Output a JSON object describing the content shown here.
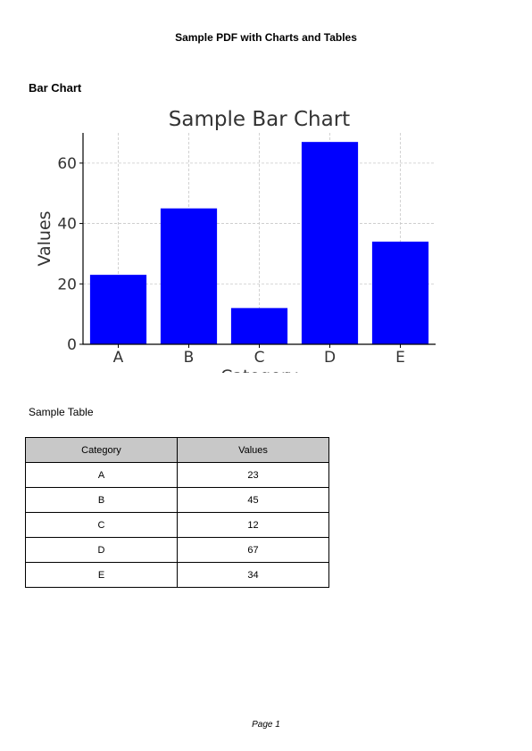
{
  "document": {
    "title": "Sample PDF with Charts and Tables",
    "section_heading": "Bar Chart",
    "table_caption": "Sample Table",
    "footer": "Page 1"
  },
  "chart_data": {
    "type": "bar",
    "title": "Sample Bar Chart",
    "xlabel": "Category",
    "ylabel": "Values",
    "categories": [
      "A",
      "B",
      "C",
      "D",
      "E"
    ],
    "values": [
      23,
      45,
      12,
      67,
      34
    ],
    "ylim": [
      0,
      70
    ],
    "yticks": [
      0,
      20,
      40,
      60
    ],
    "grid": true,
    "bar_color": "#0000ff"
  },
  "table": {
    "headers": [
      "Category",
      "Values"
    ],
    "rows": [
      [
        "A",
        "23"
      ],
      [
        "B",
        "45"
      ],
      [
        "C",
        "12"
      ],
      [
        "D",
        "67"
      ],
      [
        "E",
        "34"
      ]
    ],
    "header_bg": "#c8c8c8"
  }
}
